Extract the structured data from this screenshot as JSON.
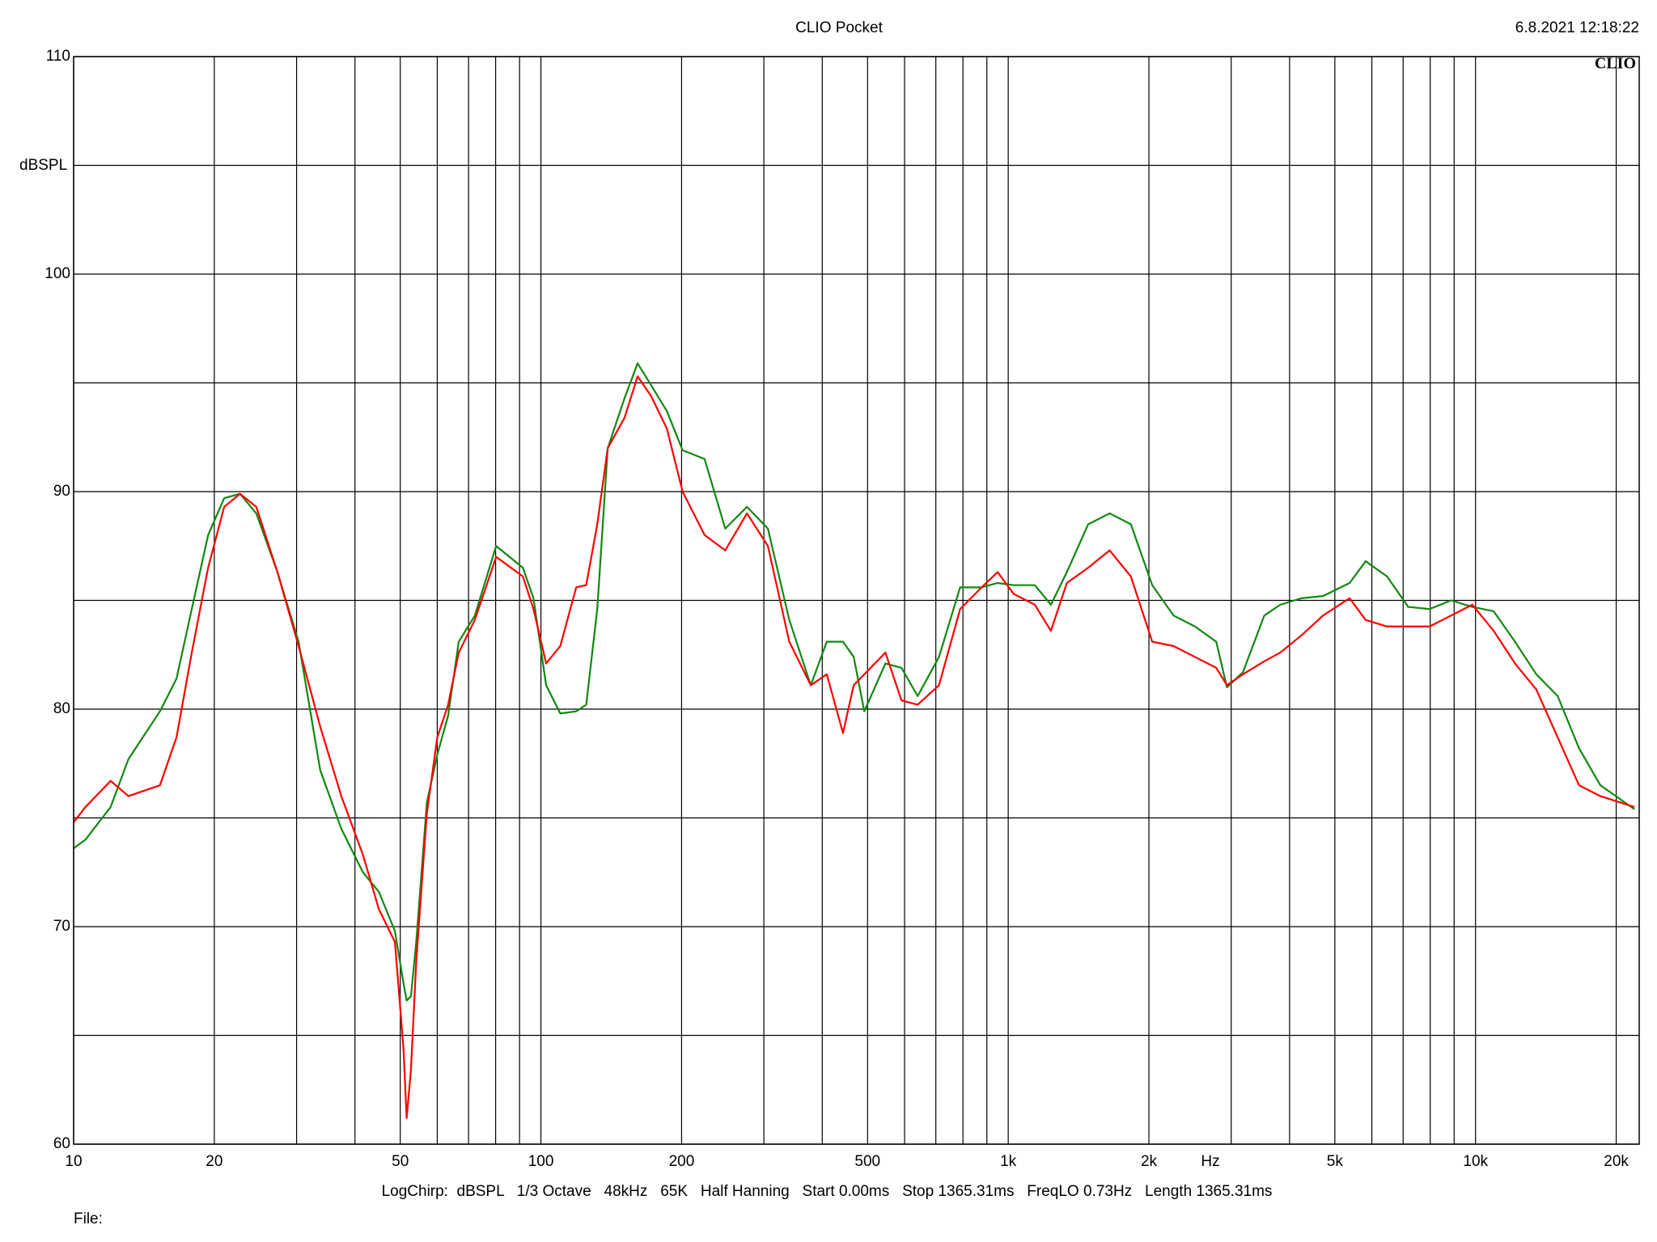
{
  "chart_data": {
    "type": "line",
    "title": "CLIO Pocket",
    "timestamp": "6.8.2021 12:18:22",
    "logo": "CLIO",
    "ylabel": "dBSPL",
    "xlabel": "Hz",
    "settings": "LogChirp:  dBSPL   1/3 Octave   48kHz   65K   Half Hanning   Start 0.00ms   Stop 1365.31ms   FreqLO 0.73Hz   Length 1365.31ms",
    "file_label": "File:",
    "log_x": true,
    "grid": true,
    "xlim": [
      10,
      22400
    ],
    "ylim": [
      60,
      110
    ],
    "xticks": [
      10,
      20,
      50,
      100,
      200,
      500,
      {
        "value": 1000,
        "label": "1k"
      },
      {
        "value": 2000,
        "label": "2k"
      },
      {
        "value": 5000,
        "label": "5k"
      },
      {
        "value": 10000,
        "label": "10k"
      },
      {
        "value": 20000,
        "label": "20k"
      }
    ],
    "minor_xticks": [
      30,
      40,
      60,
      70,
      80,
      90,
      300,
      400,
      600,
      700,
      800,
      900,
      3000,
      4000,
      6000,
      7000,
      8000,
      9000
    ],
    "yticks": [
      60,
      70,
      80,
      90,
      100,
      110
    ],
    "minor_yticks": [
      65,
      75,
      85,
      95,
      105
    ],
    "x": [
      10,
      10.6,
      12.0,
      13.1,
      15.3,
      16.6,
      17.9,
      19.4,
      21.0,
      22.7,
      24.6,
      27.3,
      30.3,
      33.7,
      37.4,
      41.6,
      45.0,
      48.7,
      50.8,
      51.6,
      52.7,
      54.1,
      57.0,
      60.0,
      63.3,
      66.7,
      72.2,
      80.2,
      91.5,
      96.4,
      102.6,
      110,
      119,
      125,
      132,
      139,
      151,
      161,
      172,
      186,
      201,
      224,
      248,
      276,
      306,
      340,
      378,
      409,
      443,
      467,
      492,
      546,
      591,
      640,
      711,
      789,
      877,
      949,
      1027,
      1140,
      1234,
      1335,
      1483,
      1648,
      1830,
      2033,
      2259,
      2509,
      2787,
      2938,
      3179,
      3531,
      3821,
      4245,
      4716,
      5378,
      5819,
      6464,
      7180,
      7977,
      8861,
      9843,
      10935,
      12148,
      13494,
      14990,
      16654,
      18500,
      21880
    ],
    "series": [
      {
        "name": "green",
        "color": "#118811",
        "values": [
          73.6,
          74.0,
          75.5,
          77.7,
          79.9,
          81.4,
          84.6,
          88.0,
          89.7,
          89.9,
          89.0,
          86.3,
          83.1,
          77.2,
          74.5,
          72.5,
          71.6,
          69.8,
          67.4,
          66.6,
          66.8,
          69.3,
          75.7,
          77.9,
          79.7,
          83.1,
          84.3,
          87.5,
          86.5,
          85.1,
          81.1,
          79.8,
          79.9,
          80.2,
          84.6,
          92.0,
          94.3,
          95.9,
          94.9,
          93.7,
          91.9,
          91.5,
          88.3,
          89.3,
          88.3,
          84.1,
          81.1,
          83.1,
          83.1,
          82.4,
          79.9,
          82.1,
          81.9,
          80.6,
          82.4,
          85.6,
          85.6,
          85.8,
          85.7,
          85.7,
          84.8,
          86.3,
          88.5,
          89.0,
          88.5,
          85.7,
          84.3,
          83.8,
          83.1,
          81.0,
          81.7,
          84.3,
          84.8,
          85.1,
          85.2,
          85.8,
          86.8,
          86.1,
          84.7,
          84.6,
          85.0,
          84.7,
          84.5,
          83.1,
          81.6,
          80.6,
          78.2,
          76.5,
          75.4
        ]
      },
      {
        "name": "red",
        "color": "#ff0000",
        "values": [
          74.8,
          75.5,
          76.7,
          76.0,
          76.5,
          78.7,
          82.6,
          86.5,
          89.3,
          89.9,
          89.3,
          86.3,
          82.9,
          79.2,
          76.0,
          73.3,
          70.8,
          69.3,
          64.4,
          61.2,
          63.4,
          68.4,
          75.2,
          78.7,
          80.2,
          82.6,
          84.1,
          87.0,
          86.1,
          84.6,
          82.1,
          82.9,
          85.6,
          85.7,
          88.5,
          92.0,
          93.4,
          95.3,
          94.4,
          92.9,
          90.0,
          88.0,
          87.3,
          89.0,
          87.5,
          83.1,
          81.1,
          81.6,
          78.9,
          81.1,
          81.6,
          82.6,
          80.4,
          80.2,
          81.1,
          84.6,
          85.6,
          86.3,
          85.3,
          84.8,
          83.6,
          85.8,
          86.5,
          87.3,
          86.1,
          83.1,
          82.9,
          82.4,
          81.9,
          81.1,
          81.6,
          82.2,
          82.6,
          83.4,
          84.3,
          85.1,
          84.1,
          83.8,
          83.8,
          83.8,
          84.3,
          84.8,
          83.6,
          82.1,
          80.9,
          78.7,
          76.5,
          76.0,
          75.5
        ]
      }
    ]
  }
}
